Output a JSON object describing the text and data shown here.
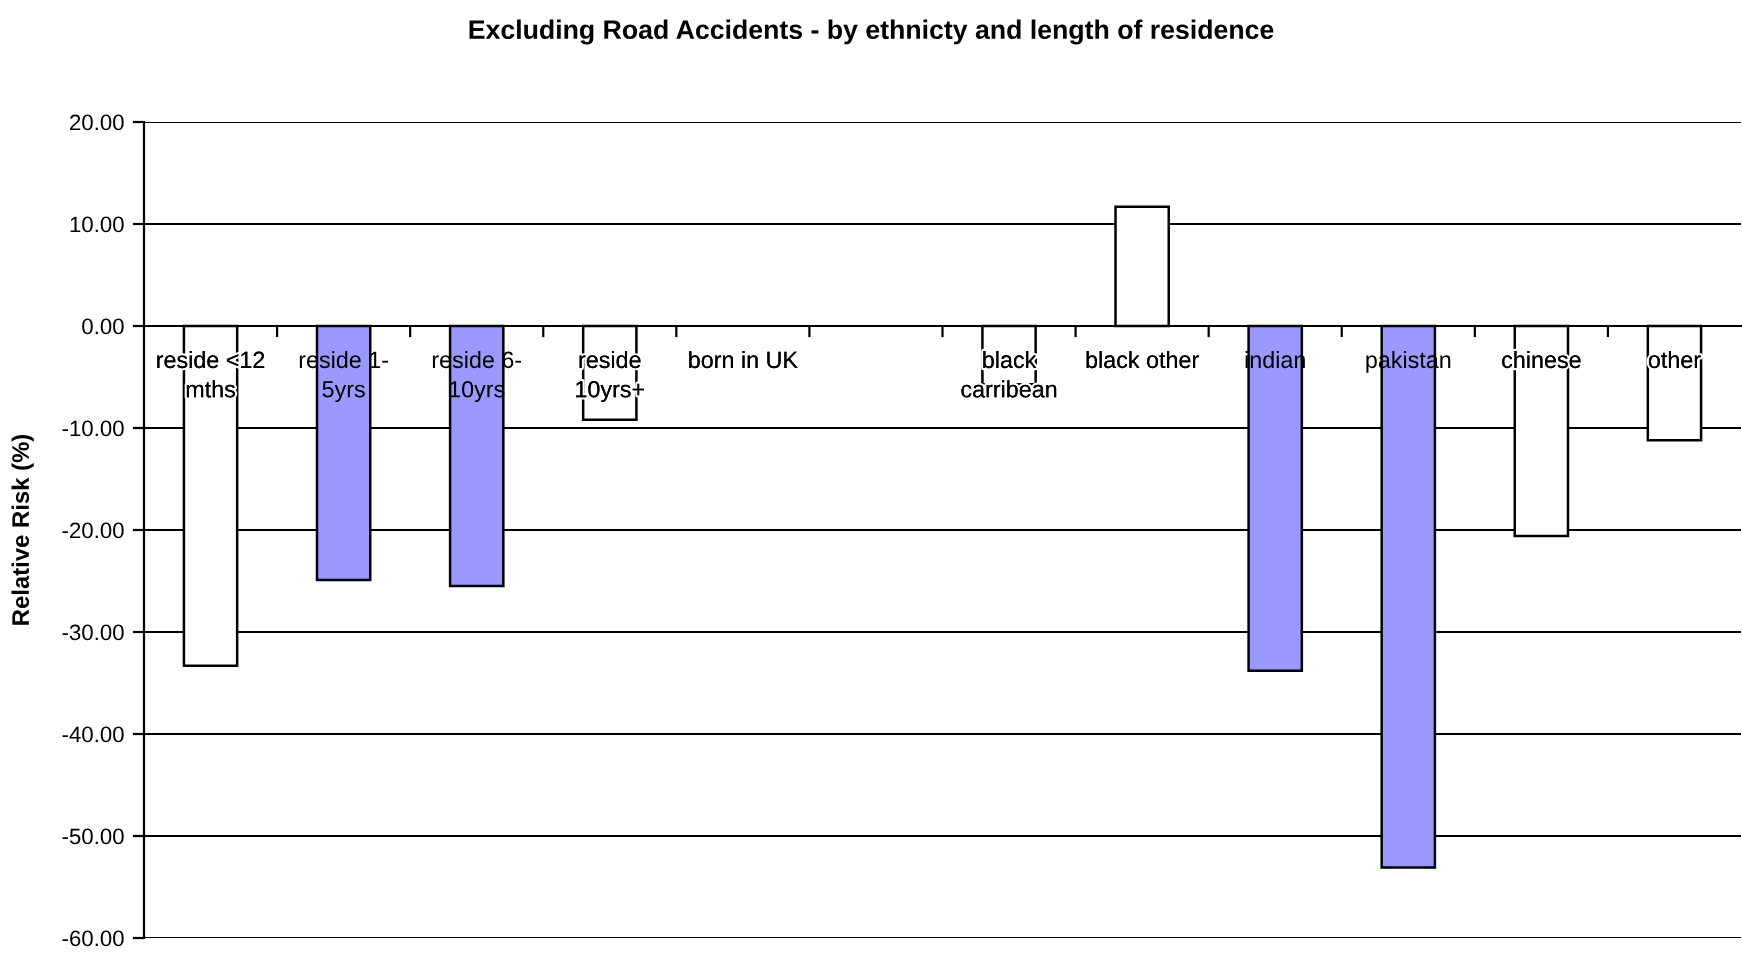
{
  "chart_data": {
    "type": "bar",
    "title": "Excluding Road Accidents - by ethnicty and length of residence",
    "ylabel": "Relative Risk (%)",
    "categories": [
      "reside <12 mths",
      "reside 1-5yrs",
      "reside 6-10yrs",
      "reside 10yrs+",
      "born in UK",
      null,
      "black carribean",
      "black other",
      "indian",
      "pakistan",
      "chinese",
      "other"
    ],
    "values": [
      -33.3,
      -24.9,
      -25.5,
      -9.2,
      null,
      null,
      -5.7,
      11.7,
      -33.8,
      -53.1,
      -20.6,
      -11.2
    ],
    "colors": [
      "#ffffff",
      "#9999ff",
      "#9999ff",
      "#ffffff",
      "#ffffff",
      "#ffffff",
      "#ffffff",
      "#ffffff",
      "#9999ff",
      "#9999ff",
      "#ffffff",
      "#ffffff"
    ],
    "ylim": [
      -60,
      20
    ],
    "yticks": [
      {
        "value": -60,
        "label": "-60.00"
      },
      {
        "value": -50,
        "label": "-50.00"
      },
      {
        "value": -40,
        "label": "-40.00"
      },
      {
        "value": -30,
        "label": "-30.00"
      },
      {
        "value": -20,
        "label": "-20.00"
      },
      {
        "value": -10,
        "label": "-10.00"
      },
      {
        "value": 0,
        "label": "0.00"
      },
      {
        "value": 10,
        "label": "10.00"
      },
      {
        "value": 20,
        "label": "20.00"
      }
    ],
    "grid": "y"
  }
}
